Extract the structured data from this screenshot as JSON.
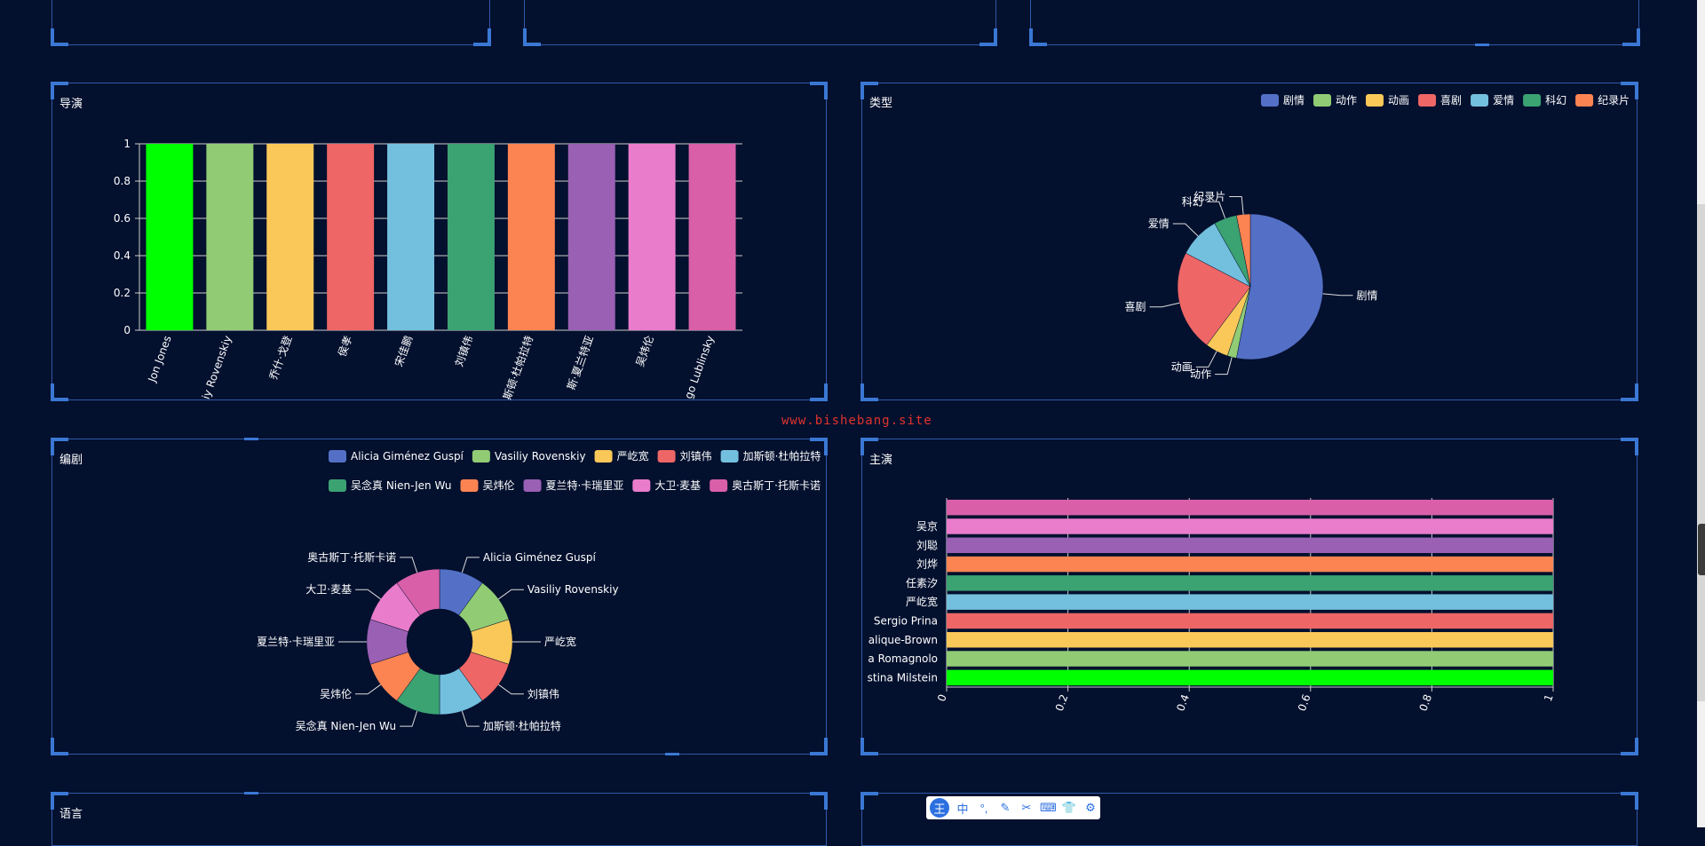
{
  "watermark": "www.bishebang.site",
  "panels": {
    "director": {
      "title": "导演"
    },
    "genre": {
      "title": "类型"
    },
    "writer": {
      "title": "编剧"
    },
    "actor": {
      "title": "主演"
    },
    "language": {
      "title": "语言"
    }
  },
  "ime_toolbar": {
    "logo": "王",
    "items": [
      "中",
      "°,",
      "✎",
      "✂",
      "⌨",
      "👕",
      "⚙"
    ]
  },
  "chart_data": [
    {
      "id": "director",
      "type": "bar",
      "title": "导演",
      "categories": [
        "Jon Jones",
        "Vasiliy Rovenskiy",
        "乔什·戈登",
        "侯孝",
        "宋佳鹏",
        "刘镇伟",
        "加斯顿·杜帕拉特",
        "夏兰特·卡瑞里亚",
        "吴炜伦",
        "Diego Lublinsky"
      ],
      "tick_labels": [
        "Jon Jones",
        "iy Rovenskiy",
        "乔什·戈登",
        "侯孝",
        "宋佳鹏",
        "刘镇伟",
        "斯顿·杜帕拉特",
        "斯·夏兰特亚",
        "吴炜伦",
        "go Lublinsky"
      ],
      "values": [
        1,
        1,
        1,
        1,
        1,
        1,
        1,
        1,
        1,
        1
      ],
      "colors": [
        "#00ff00",
        "#91cc75",
        "#fac858",
        "#ee6666",
        "#73c0de",
        "#3ba272",
        "#fc8452",
        "#9a60b4",
        "#ea7ccc",
        "#d85fa8"
      ],
      "yticks": [
        "0",
        "0.2",
        "0.4",
        "0.6",
        "0.8",
        "1"
      ],
      "ylim": [
        0,
        1
      ]
    },
    {
      "id": "genre",
      "type": "pie",
      "title": "类型",
      "legend": [
        "剧情",
        "动作",
        "动画",
        "喜剧",
        "爱情",
        "科幻",
        "纪录片"
      ],
      "values": [
        52,
        2,
        5,
        22,
        9,
        5,
        3
      ],
      "colors": [
        "#5470c6",
        "#91cc75",
        "#fac858",
        "#ee6666",
        "#73c0de",
        "#3ba272",
        "#fc8452"
      ]
    },
    {
      "id": "writer",
      "type": "pie",
      "title": "编剧",
      "donut": true,
      "legend": [
        "Alicia Giménez Guspí",
        "Vasiliy Rovenskiy",
        "严屹宽",
        "刘镇伟",
        "加斯顿·杜帕拉特",
        "吴念真 Nien-Jen Wu",
        "吴炜伦",
        "夏兰特·卡瑞里亚",
        "大卫·麦基",
        "奥古斯丁·托斯卡诺"
      ],
      "values": [
        1,
        1,
        1,
        1,
        1,
        1,
        1,
        1,
        1,
        1
      ],
      "colors": [
        "#5470c6",
        "#91cc75",
        "#fac858",
        "#ee6666",
        "#73c0de",
        "#3ba272",
        "#fc8452",
        "#9a60b4",
        "#ea7ccc",
        "#d85fa8"
      ]
    },
    {
      "id": "actor",
      "type": "bar",
      "orientation": "horizontal",
      "title": "主演",
      "categories": [
        "Cristina Milstein",
        "Diego Romagnolo",
        "Nathalie Malique-Brown",
        "Sergio Prina",
        "严屹宽",
        "任素汐",
        "刘烨",
        "刘聪",
        "吴京",
        ""
      ],
      "tick_labels": [
        "stina Milstein",
        "a Romagnolo",
        "alique-Brown",
        "Sergio Prina",
        "严屹宽",
        "任素汐",
        "刘烨",
        "刘聪",
        "吴京",
        ""
      ],
      "values": [
        1,
        1,
        1,
        1,
        1,
        1,
        1,
        1,
        1,
        1
      ],
      "colors": [
        "#00ff00",
        "#91cc75",
        "#fac858",
        "#ee6666",
        "#73c0de",
        "#3ba272",
        "#fc8452",
        "#9a60b4",
        "#ea7ccc",
        "#d85fa8"
      ],
      "xticks": [
        "0",
        "0.2",
        "0.4",
        "0.6",
        "0.8",
        "1"
      ],
      "xlim": [
        0,
        1
      ]
    }
  ]
}
